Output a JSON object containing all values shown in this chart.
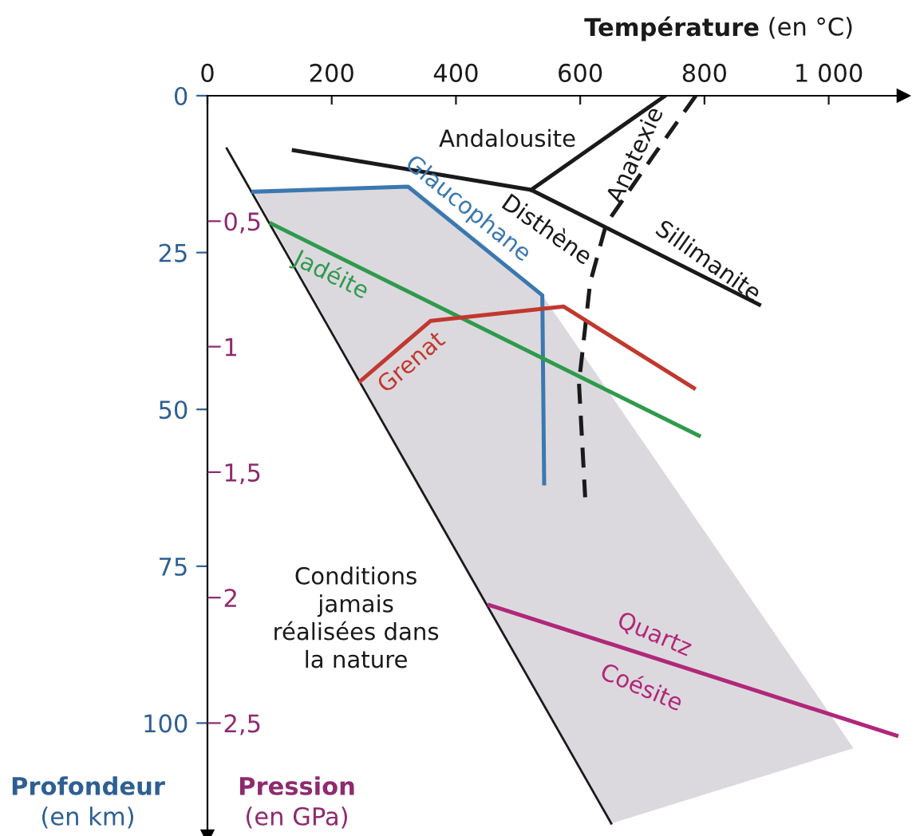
{
  "chart_data": {
    "type": "line",
    "xlabel": "Température (en °C)",
    "ylabel": "Profondeur (en km)",
    "y2label": "Pression (en GPa)",
    "xlim": [
      0,
      1120
    ],
    "xticks": [
      0,
      200,
      400,
      600,
      800,
      {
        "value": 1000,
        "label": "1 000"
      }
    ],
    "ylim": [
      118,
      0
    ],
    "yticks": [
      0,
      25,
      50,
      75,
      100
    ],
    "y2lim": [
      2.95,
      0
    ],
    "y2ticks": [
      {
        "value": 0.5,
        "label": "0,5"
      },
      {
        "value": 1,
        "label": "1"
      },
      {
        "value": 1.5,
        "label": "1,5"
      },
      {
        "value": 2,
        "label": "2"
      },
      {
        "value": 2.5,
        "label": "2,5"
      }
    ],
    "grid": false,
    "legend": false,
    "series": [
      {
        "type": "area",
        "color": "#dcd9de",
        "x": [
          74,
          323,
          539,
          1040,
          650
        ],
        "values": [
          15.3,
          14.5,
          31.8,
          104,
          116
        ]
      },
      {
        "color": "#1a1a1a",
        "x": [
          31,
          650
        ],
        "values": [
          8.4,
          116
        ]
      },
      {
        "color": "#1a1a1a",
        "x": [
          139,
          521,
          888,
          null,
          521,
          737
        ],
        "values": [
          8.7,
          15.0,
          33.3,
          null,
          15.0,
          0
        ]
      },
      {
        "color": "#1a1a1a",
        "line_style": "dashed",
        "x": [
          786,
          719,
          642,
          616,
          598,
          608
        ],
        "values": [
          0,
          9.4,
          20.4,
          29.8,
          45.8,
          64
        ]
      },
      {
        "name": "Glaucophane",
        "color": "#3b78b0",
        "x": [
          74,
          323,
          539,
          542
        ],
        "values": [
          15.3,
          14.5,
          31.8,
          61.8
        ]
      },
      {
        "name": "Jadéite",
        "color": "#2f9a4c",
        "x": [
          103,
          791
        ],
        "values": [
          20.4,
          54.2
        ]
      },
      {
        "name": "Grenat",
        "color": "#c0392f",
        "x": [
          246,
          359,
          573,
          783
        ],
        "values": [
          45.5,
          35.9,
          33.6,
          46.6
        ]
      },
      {
        "color": "#b0287a",
        "x": [
          454,
          1109
        ],
        "values": [
          81.2,
          102.0
        ]
      }
    ],
    "annotations": [
      "Andalousite",
      "Disthène",
      "Sillimanite",
      "Anatexie",
      "Quartz",
      "Coésite",
      "Conditions\njamais\nréalisées dans\nla nature"
    ]
  }
}
